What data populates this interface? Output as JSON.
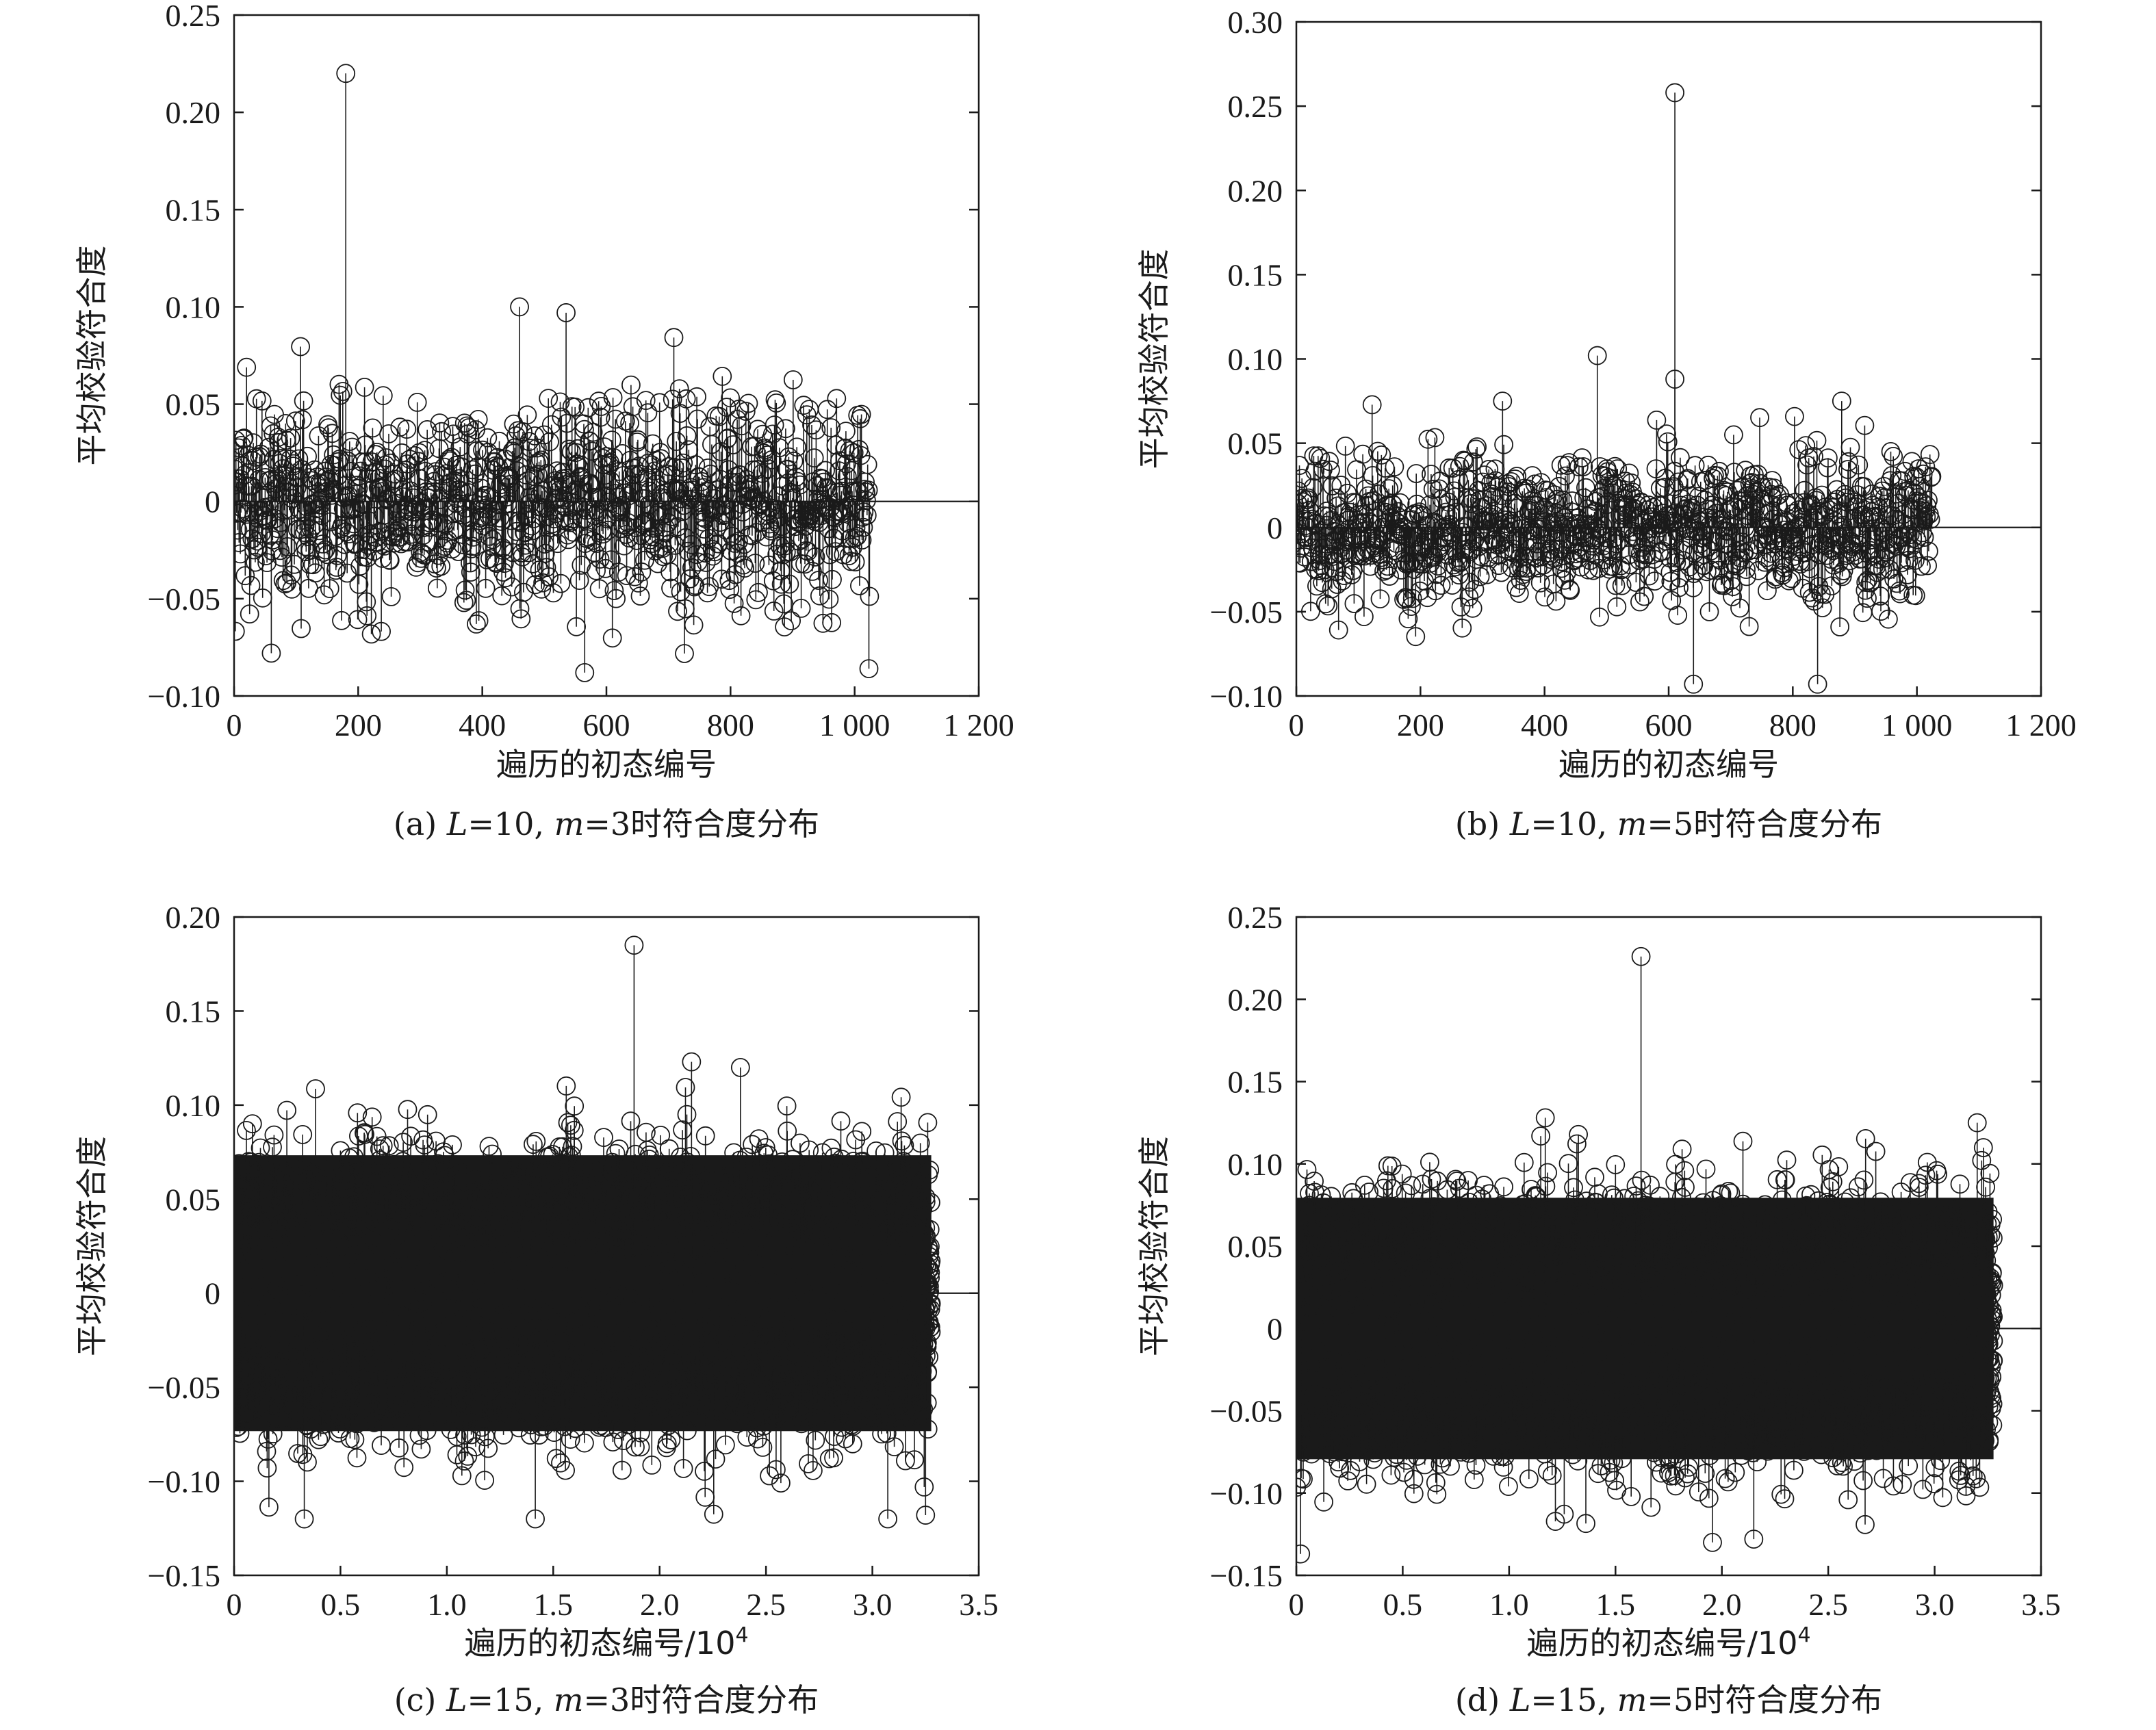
{
  "chart_data": [
    {
      "type": "scatter",
      "style": "stem",
      "caption": {
        "prefix": "(a) ",
        "var1": "L",
        "eq1": "=10, ",
        "var2": "m",
        "eq2": "=3时符合度分布"
      },
      "xlabel": "遍历的初态编号",
      "xlabel_sup": "",
      "ylabel": "平均校验符合度",
      "xlim": [
        0,
        1200
      ],
      "ylim": [
        -0.1,
        0.25
      ],
      "xticks": [
        0,
        200,
        400,
        600,
        800,
        1000,
        1200
      ],
      "xtick_labels": [
        "0",
        "200",
        "400",
        "600",
        "800",
        "1 000",
        "1 200"
      ],
      "yticks": [
        -0.1,
        -0.05,
        0,
        0.05,
        0.1,
        0.15,
        0.2,
        0.25
      ],
      "ytick_labels": [
        "−0.10",
        "−0.05",
        "0",
        "0.05",
        "0.10",
        "0.15",
        "0.20",
        "0.25"
      ],
      "n_points": 1024,
      "x_end": 1024,
      "typical_range": [
        -0.09,
        0.1
      ],
      "notable_points": [
        {
          "x": 180,
          "y": 0.22
        },
        {
          "x": 460,
          "y": 0.1
        },
        {
          "x": 535,
          "y": 0.097
        },
        {
          "x": 565,
          "y": -0.088
        },
        {
          "x": 60,
          "y": -0.078
        }
      ]
    },
    {
      "type": "scatter",
      "style": "stem",
      "caption": {
        "prefix": "(b) ",
        "var1": "L",
        "eq1": "=10, ",
        "var2": "m",
        "eq2": "=5时符合度分布"
      },
      "xlabel": "遍历的初态编号",
      "xlabel_sup": "",
      "ylabel": "平均校验符合度",
      "xlim": [
        0,
        1200
      ],
      "ylim": [
        -0.1,
        0.3
      ],
      "xticks": [
        0,
        200,
        400,
        600,
        800,
        1000,
        1200
      ],
      "xtick_labels": [
        "0",
        "200",
        "400",
        "600",
        "800",
        "1 000",
        "1 200"
      ],
      "yticks": [
        -0.1,
        -0.05,
        0,
        0.05,
        0.1,
        0.15,
        0.2,
        0.25,
        0.3
      ],
      "ytick_labels": [
        "−0.10",
        "−0.05",
        "0",
        "0.05",
        "0.10",
        "0.15",
        "0.20",
        "0.25",
        "0.30"
      ],
      "n_points": 1024,
      "x_end": 1024,
      "typical_range": [
        -0.09,
        0.075
      ],
      "notable_points": [
        {
          "x": 610,
          "y": 0.258
        },
        {
          "x": 610,
          "y": 0.088
        },
        {
          "x": 485,
          "y": 0.102
        },
        {
          "x": 640,
          "y": -0.093
        },
        {
          "x": 840,
          "y": -0.093
        }
      ]
    },
    {
      "type": "scatter",
      "style": "stem",
      "caption": {
        "prefix": "(c) ",
        "var1": "L",
        "eq1": "=15, ",
        "var2": "m",
        "eq2": "=3时符合度分布"
      },
      "xlabel": "遍历的初态编号/10",
      "xlabel_sup": "4",
      "ylabel": "平均校验符合度",
      "xlim": [
        0,
        3.5
      ],
      "ylim": [
        -0.15,
        0.2
      ],
      "xticks": [
        0,
        0.5,
        1.0,
        1.5,
        2.0,
        2.5,
        3.0,
        3.5
      ],
      "xtick_labels": [
        "0",
        "0.5",
        "1.0",
        "1.5",
        "2.0",
        "2.5",
        "3.0",
        "3.5"
      ],
      "yticks": [
        -0.15,
        -0.1,
        -0.05,
        0,
        0.05,
        0.1,
        0.15,
        0.2
      ],
      "ytick_labels": [
        "−0.15",
        "−0.10",
        "−0.05",
        "0",
        "0.05",
        "0.10",
        "0.15",
        "0.20"
      ],
      "n_points": 32768,
      "x_end": 3.2768,
      "typical_range": [
        -0.12,
        0.12
      ],
      "notable_points": [
        {
          "x": 1.88,
          "y": 0.185
        },
        {
          "x": 2.15,
          "y": 0.123
        },
        {
          "x": 2.38,
          "y": 0.12
        },
        {
          "x": 0.33,
          "y": -0.12
        },
        {
          "x": 3.25,
          "y": -0.118
        }
      ]
    },
    {
      "type": "scatter",
      "style": "stem",
      "caption": {
        "prefix": "(d) ",
        "var1": "L",
        "eq1": "=15, ",
        "var2": "m",
        "eq2": "=5时符合度分布"
      },
      "xlabel": "遍历的初态编号/10",
      "xlabel_sup": "4",
      "ylabel": "平均校验符合度",
      "xlim": [
        0,
        3.5
      ],
      "ylim": [
        -0.15,
        0.25
      ],
      "xticks": [
        0,
        0.5,
        1.0,
        1.5,
        2.0,
        2.5,
        3.0,
        3.5
      ],
      "xtick_labels": [
        "0",
        "0.5",
        "1.0",
        "1.5",
        "2.0",
        "2.5",
        "3.0",
        "3.5"
      ],
      "yticks": [
        -0.15,
        -0.1,
        -0.05,
        0,
        0.05,
        0.1,
        0.15,
        0.2,
        0.25
      ],
      "ytick_labels": [
        "−0.15",
        "−0.10",
        "−0.05",
        "0",
        "0.05",
        "0.10",
        "0.15",
        "0.20",
        "0.25"
      ],
      "n_points": 32768,
      "x_end": 3.2768,
      "typical_range": [
        -0.13,
        0.13
      ],
      "notable_points": [
        {
          "x": 1.62,
          "y": 0.226
        },
        {
          "x": 1.17,
          "y": 0.128
        },
        {
          "x": 3.2,
          "y": 0.125
        },
        {
          "x": 0.02,
          "y": -0.137
        },
        {
          "x": 2.15,
          "y": -0.128
        }
      ]
    }
  ]
}
